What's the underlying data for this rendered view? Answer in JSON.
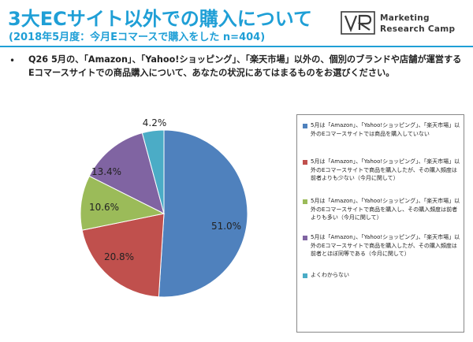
{
  "header": {
    "title": "3大ECサイト以外での購入について",
    "subtitle": "(2018年5月度：今月Eコマースで購入をした n=404)",
    "logo": {
      "line1": "Marketing",
      "line2": "Research Camp"
    }
  },
  "question": {
    "bullet": "•",
    "text": "Q26 5月の、「Amazon」、「Yahoo!ショッピング」、「楽天市場」以外の、個別のブランドや店舗が運営するEコマースサイトでの商品購入について、あなたの状況にあてはまるものをお選びください。"
  },
  "colors": {
    "accent": "#1f9fd6"
  },
  "chart_data": {
    "type": "pie",
    "title": "",
    "start_angle_deg": 0,
    "direction": "clockwise",
    "legend_position": "right",
    "slices": [
      {
        "label": "5月は「Amazon」、「Yahoo!ショッピング」、「楽天市場」以外のEコマースサイトでは商品を購入していない",
        "value": 51.0,
        "value_label": "51.0%",
        "color": "#4f81bd"
      },
      {
        "label": "5月は「Amazon」、「Yahoo!ショッピング」、「楽天市場」以外のEコマースサイトで商品を購入したが、その購入頻度は前者よりも少ない（今月に関して）",
        "value": 20.8,
        "value_label": "20.8%",
        "color": "#c0504d"
      },
      {
        "label": "5月は「Amazon」、「Yahoo!ショッピング」、「楽天市場」以外のEコマースサイトで商品を購入し、その購入頻度は前者よりも多い（今月に関して）",
        "value": 10.6,
        "value_label": "10.6%",
        "color": "#9bbb59"
      },
      {
        "label": "5月は「Amazon」、「Yahoo!ショッピング」、「楽天市場」以外のEコマースサイトで商品を購入したが、その購入頻度は前者とほぼ同等である（今月に関して）",
        "value": 13.4,
        "value_label": "13.4%",
        "color": "#8064a2"
      },
      {
        "label": "よくわからない",
        "value": 4.2,
        "value_label": "4.2%",
        "color": "#4bacc6"
      }
    ]
  }
}
